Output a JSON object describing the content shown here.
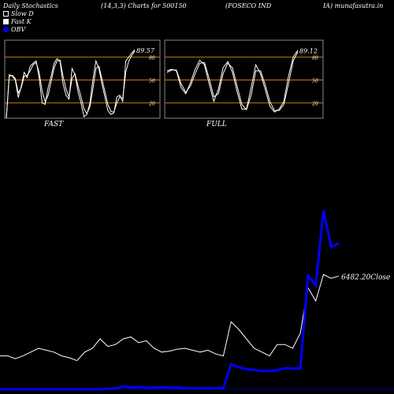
{
  "header": {
    "left": "Daily Stochastics",
    "params": "(14,3,3) Charts for 500150",
    "company": "(FOSECO IND",
    "site": "IA) munafasutra.in"
  },
  "legend": [
    {
      "label": "Slow  D",
      "color": "#ffffff",
      "filled": false
    },
    {
      "label": "Fast K",
      "color": "#ffffff",
      "filled": true
    },
    {
      "label": "OBV",
      "color": "#0000ff",
      "filled": true
    }
  ],
  "colors": {
    "background": "#000000",
    "panel_border": "#888888",
    "ref_line": "#c87800",
    "line": "#ffffff",
    "obv": "#0000ff"
  },
  "chart_data": [
    {
      "type": "line",
      "title": "FAST",
      "ylim": [
        0,
        100
      ],
      "reference_lines": [
        20,
        50,
        80
      ],
      "ytick_labels": [
        "20",
        "50",
        "80"
      ],
      "last_value_label": "89.57",
      "series": [
        {
          "values": [
            0,
            57,
            55,
            50,
            27,
            42,
            60,
            53,
            68,
            72,
            75,
            53,
            20,
            18,
            40,
            55,
            72,
            78,
            74,
            45,
            30,
            25,
            65,
            57,
            35,
            20,
            2,
            5,
            20,
            50,
            75,
            65,
            45,
            28,
            10,
            5,
            7,
            28,
            30,
            22,
            75,
            80,
            85,
            89.57
          ]
        },
        {
          "values": [
            0,
            55,
            56,
            52,
            33,
            40,
            55,
            56,
            62,
            70,
            73,
            60,
            35,
            22,
            30,
            48,
            66,
            75,
            76,
            55,
            38,
            28,
            52,
            58,
            42,
            28,
            12,
            6,
            15,
            38,
            65,
            68,
            52,
            35,
            18,
            9,
            8,
            20,
            28,
            26,
            60,
            75,
            82,
            88
          ]
        }
      ]
    },
    {
      "type": "line",
      "title": "FULL",
      "ylim": [
        0,
        100
      ],
      "reference_lines": [
        20,
        50,
        80
      ],
      "ytick_labels": [
        "20",
        "50",
        "80"
      ],
      "last_value_label": "89.12",
      "series": [
        {
          "values": [
            62,
            64,
            62,
            40,
            32,
            46,
            64,
            76,
            70,
            45,
            22,
            38,
            66,
            74,
            60,
            35,
            12,
            12,
            40,
            70,
            58,
            38,
            16,
            8,
            12,
            22,
            55,
            80,
            89.12
          ]
        },
        {
          "values": [
            60,
            63,
            63,
            45,
            34,
            42,
            58,
            72,
            73,
            52,
            28,
            32,
            58,
            72,
            66,
            42,
            18,
            11,
            30,
            62,
            62,
            44,
            22,
            10,
            10,
            18,
            45,
            75,
            87
          ]
        }
      ]
    },
    {
      "type": "line",
      "title": "",
      "last_value_label": "6482.20",
      "last_value_suffix": "Close",
      "series": [
        {
          "name": "Close",
          "values": [
            6060,
            6060,
            6045,
            6060,
            6080,
            6100,
            6090,
            6080,
            6060,
            6050,
            6035,
            6080,
            6100,
            6150,
            6110,
            6120,
            6150,
            6160,
            6130,
            6140,
            6100,
            6080,
            6085,
            6095,
            6100,
            6090,
            6080,
            6090,
            6070,
            6060,
            6240,
            6200,
            6150,
            6100,
            6080,
            6060,
            6120,
            6120,
            6100,
            6180,
            6420,
            6350,
            6490,
            6470,
            6482.2
          ]
        },
        {
          "name": "OBV",
          "values": [
            0,
            0,
            0,
            0,
            0,
            0,
            0,
            0,
            0,
            0,
            0,
            0,
            0,
            0,
            2,
            5,
            15,
            10,
            12,
            8,
            10,
            12,
            8,
            10,
            5,
            5,
            5,
            5,
            5,
            5,
            130,
            115,
            105,
            100,
            95,
            95,
            100,
            110,
            108,
            108,
            590,
            540,
            930,
            740,
            760
          ]
        }
      ]
    }
  ]
}
